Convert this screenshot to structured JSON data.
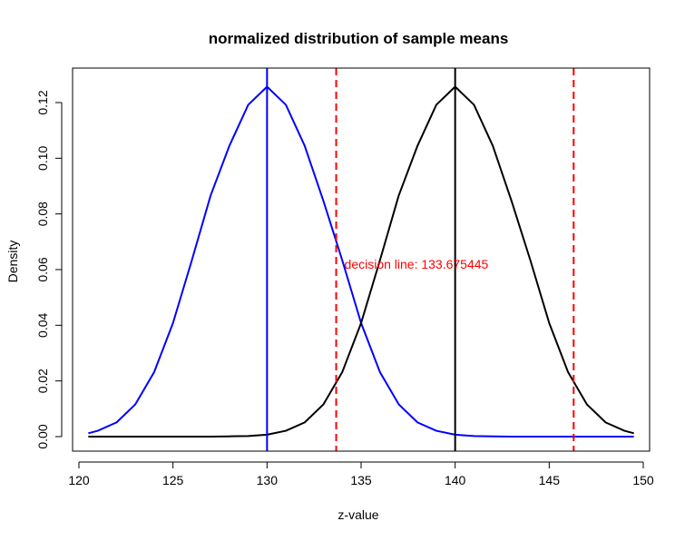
{
  "chart_data": {
    "type": "line",
    "title": "normalized distribution of sample means",
    "xlabel": "z-value",
    "ylabel": "Density",
    "xlim": [
      120.5,
      149.5
    ],
    "ylim": [
      0,
      0.126
    ],
    "x_ticks": [
      120,
      125,
      130,
      135,
      140,
      145,
      150
    ],
    "x_tick_labels": [
      "120",
      "125",
      "130",
      "135",
      "140",
      "145",
      "150"
    ],
    "y_ticks": [
      0.0,
      0.02,
      0.04,
      0.06,
      0.08,
      0.1,
      0.12
    ],
    "y_tick_labels": [
      "0.00",
      "0.02",
      "0.04",
      "0.06",
      "0.08",
      "0.10",
      "0.12"
    ],
    "grid": false,
    "series": [
      {
        "color": "#0000ff",
        "x": [
          120.5,
          121,
          122,
          123,
          124,
          125,
          126,
          127,
          128,
          129,
          130,
          131,
          132,
          133,
          134,
          135,
          136,
          137,
          138,
          139,
          140,
          141,
          142,
          143,
          144,
          145,
          146,
          147,
          148,
          149,
          149.5
        ],
        "y": [
          0.0012,
          0.0021,
          0.0051,
          0.0116,
          0.0232,
          0.0408,
          0.0633,
          0.0866,
          0.1045,
          0.1192,
          0.1257,
          0.1192,
          0.1045,
          0.0846,
          0.0633,
          0.0408,
          0.0232,
          0.0116,
          0.0051,
          0.0021,
          0.0007,
          0.0002,
          0.0001,
          0,
          0,
          0,
          0,
          0,
          0,
          0,
          0
        ]
      },
      {
        "color": "#000000",
        "x": [
          120.5,
          121,
          122,
          123,
          124,
          125,
          126,
          127,
          128,
          129,
          130,
          131,
          132,
          133,
          134,
          135,
          136,
          137,
          138,
          139,
          140,
          141,
          142,
          143,
          144,
          145,
          146,
          147,
          148,
          149,
          149.5
        ],
        "y": [
          0,
          0,
          0,
          0,
          0,
          0,
          0,
          0,
          0.0001,
          0.0002,
          0.0007,
          0.0021,
          0.0051,
          0.0116,
          0.0232,
          0.0408,
          0.0633,
          0.0866,
          0.1045,
          0.1192,
          0.1257,
          0.1192,
          0.1045,
          0.0846,
          0.0633,
          0.0408,
          0.0232,
          0.0116,
          0.0051,
          0.0021,
          0.0012
        ]
      }
    ],
    "vertical_lines": [
      {
        "x": 130,
        "color": "#0000ff",
        "style": "solid"
      },
      {
        "x": 140,
        "color": "#000000",
        "style": "solid"
      },
      {
        "x": 133.675445,
        "color": "#ff0000",
        "style": "dashed"
      },
      {
        "x": 146.3,
        "color": "#ff0000",
        "style": "dashed"
      }
    ],
    "annotations": [
      {
        "text": "decision line: 133.675445",
        "x": 133.675445,
        "y": 0.062,
        "color": "#ff0000"
      }
    ]
  }
}
